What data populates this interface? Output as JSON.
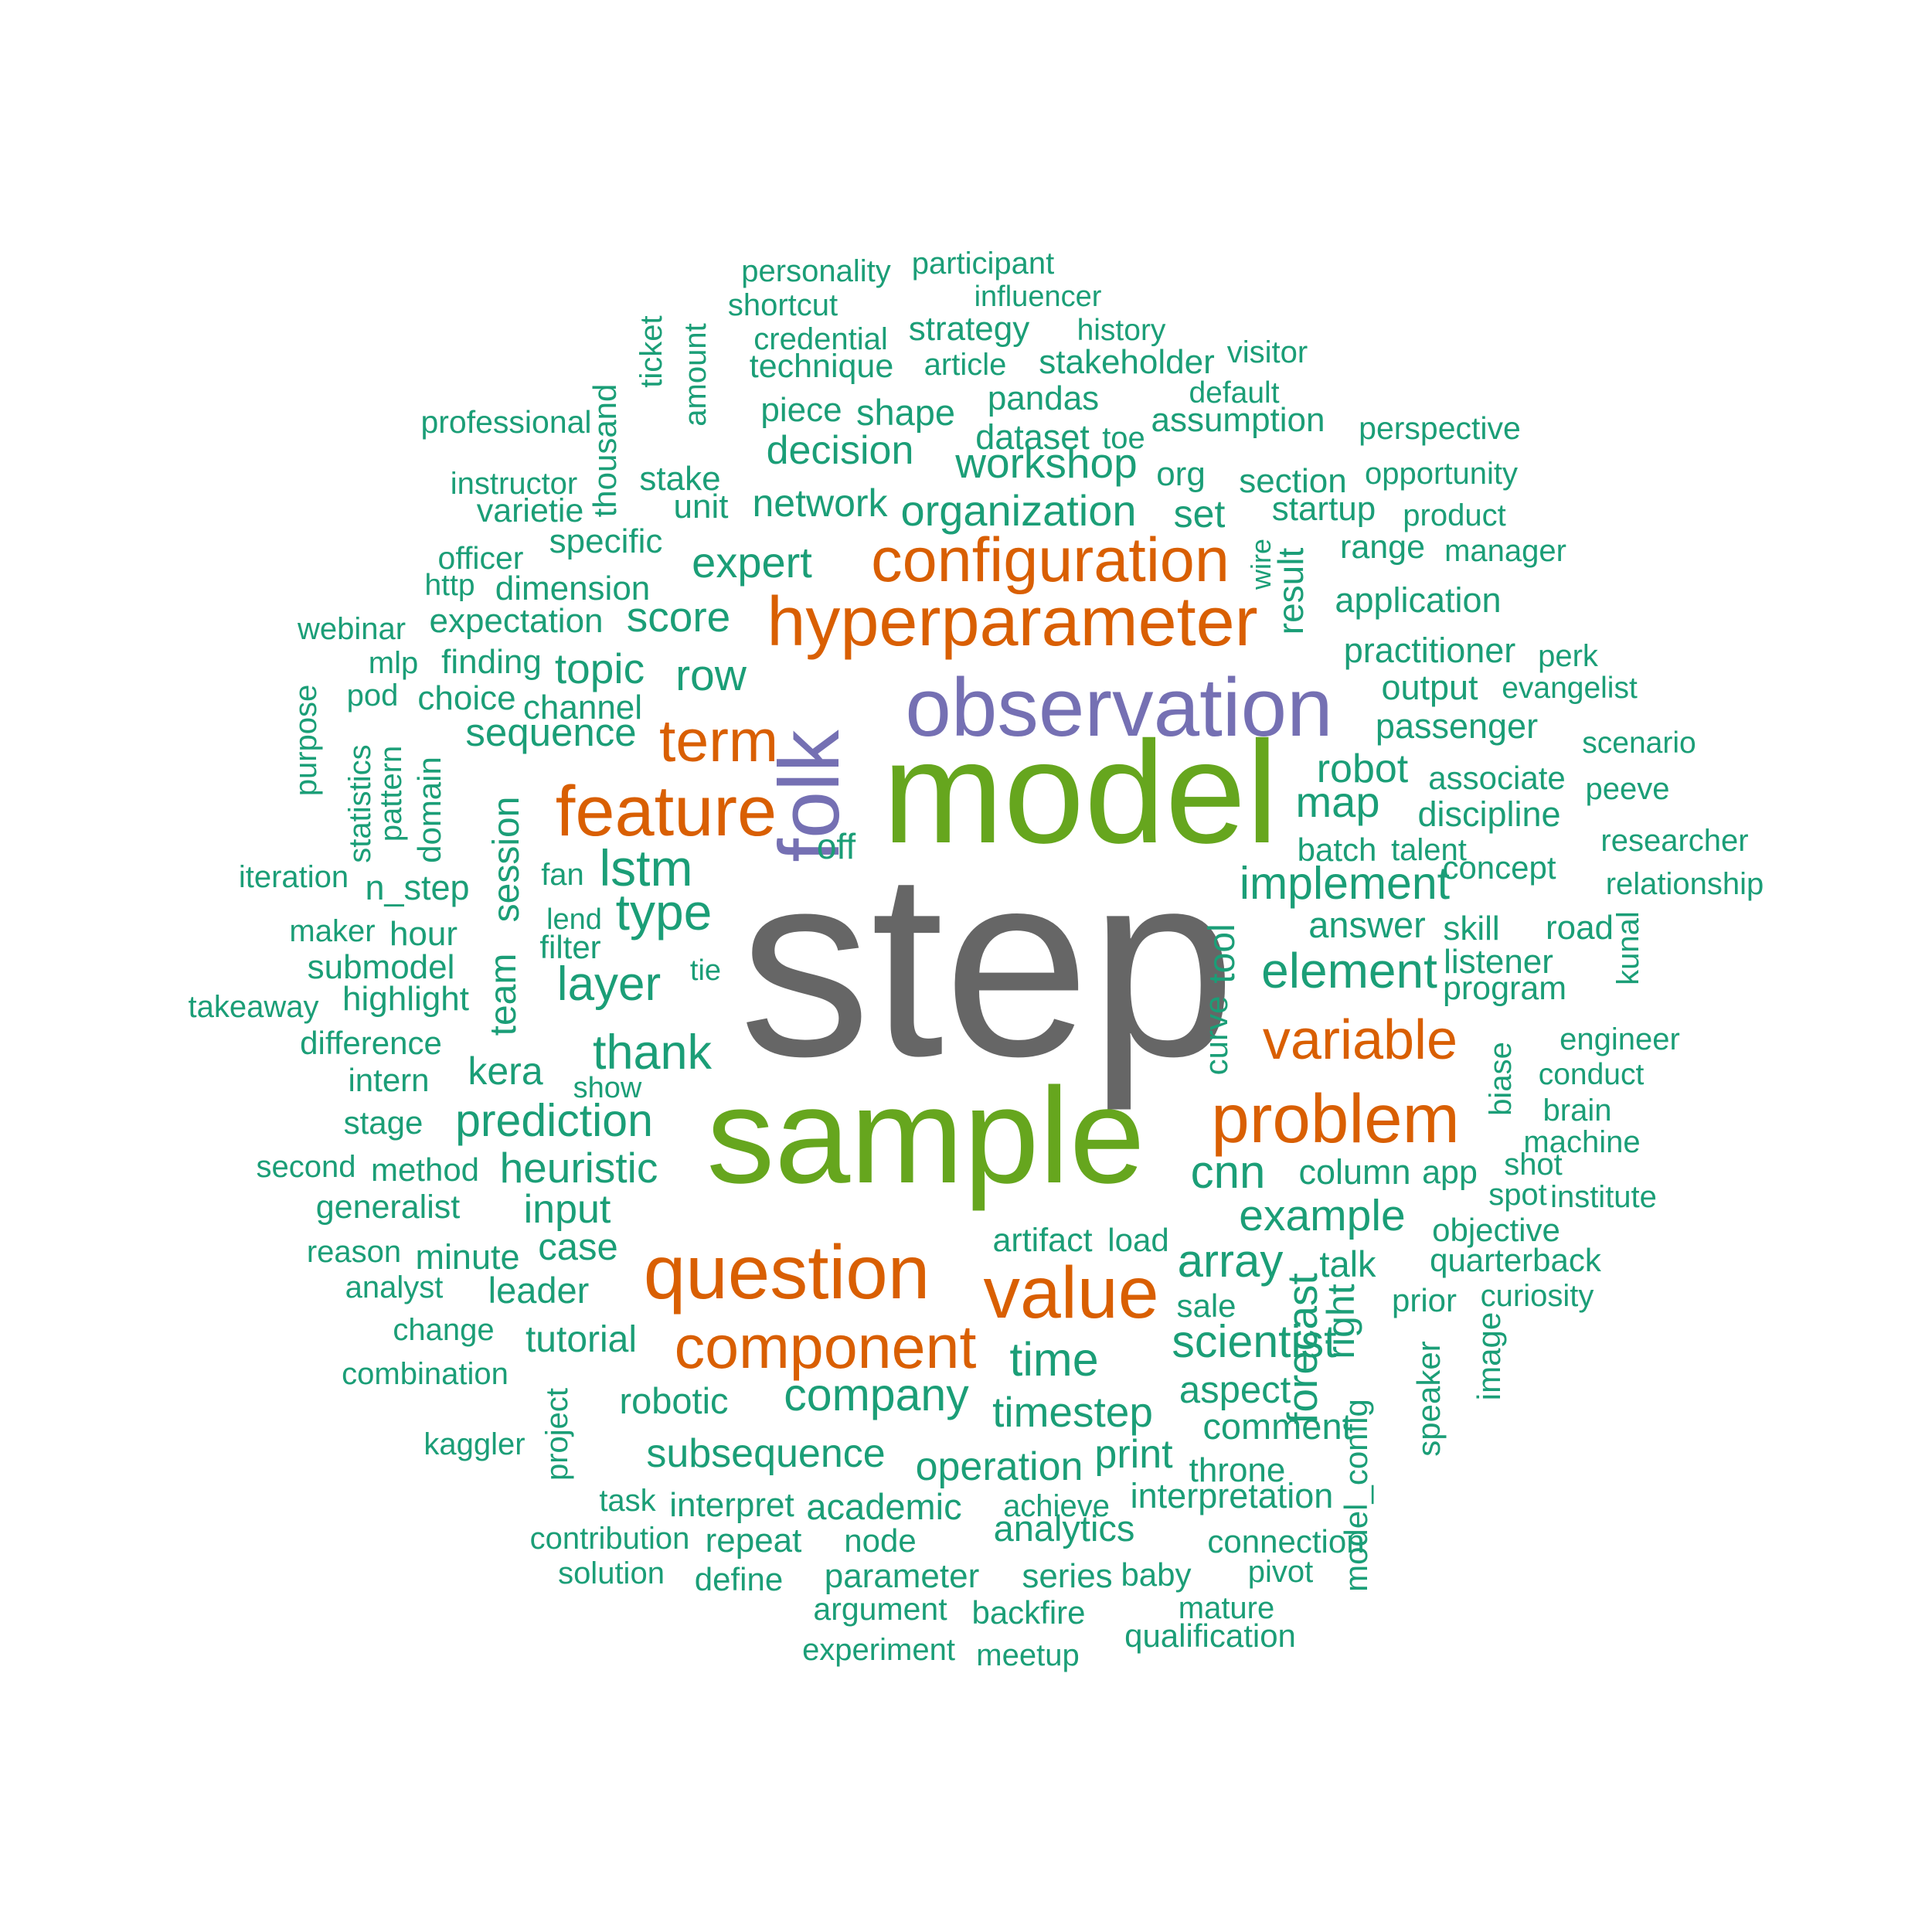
{
  "colors": {
    "gray": "#666666",
    "green": "#66A61E",
    "purple": "#7570B3",
    "orange": "#D95F02",
    "teal": "#1B9E77"
  },
  "words": [
    {
      "text": "step",
      "color": "gray"
    },
    {
      "text": "model",
      "color": "green"
    },
    {
      "text": "sample",
      "color": "green"
    },
    {
      "text": "observation",
      "color": "purple"
    },
    {
      "text": "folk",
      "color": "purple"
    },
    {
      "text": "hyperparameter",
      "color": "orange"
    },
    {
      "text": "configuration",
      "color": "orange"
    },
    {
      "text": "feature",
      "color": "orange"
    },
    {
      "text": "term",
      "color": "orange"
    },
    {
      "text": "problem",
      "color": "orange"
    },
    {
      "text": "question",
      "color": "orange"
    },
    {
      "text": "value",
      "color": "orange"
    },
    {
      "text": "component",
      "color": "orange"
    },
    {
      "text": "variable",
      "color": "orange"
    },
    {
      "text": "personality",
      "color": "teal"
    },
    {
      "text": "participant",
      "color": "teal"
    },
    {
      "text": "shortcut",
      "color": "teal"
    },
    {
      "text": "influencer",
      "color": "teal"
    },
    {
      "text": "credential",
      "color": "teal"
    },
    {
      "text": "strategy",
      "color": "teal"
    },
    {
      "text": "history",
      "color": "teal"
    },
    {
      "text": "technique",
      "color": "teal"
    },
    {
      "text": "article",
      "color": "teal"
    },
    {
      "text": "stakeholder",
      "color": "teal"
    },
    {
      "text": "visitor",
      "color": "teal"
    },
    {
      "text": "default",
      "color": "teal"
    },
    {
      "text": "professional",
      "color": "teal"
    },
    {
      "text": "piece",
      "color": "teal"
    },
    {
      "text": "shape",
      "color": "teal"
    },
    {
      "text": "pandas",
      "color": "teal"
    },
    {
      "text": "assumption",
      "color": "teal"
    },
    {
      "text": "perspective",
      "color": "teal"
    },
    {
      "text": "dataset",
      "color": "teal"
    },
    {
      "text": "toe",
      "color": "teal"
    },
    {
      "text": "decision",
      "color": "teal"
    },
    {
      "text": "workshop",
      "color": "teal"
    },
    {
      "text": "instructor",
      "color": "teal"
    },
    {
      "text": "stake",
      "color": "teal"
    },
    {
      "text": "org",
      "color": "teal"
    },
    {
      "text": "section",
      "color": "teal"
    },
    {
      "text": "opportunity",
      "color": "teal"
    },
    {
      "text": "varietie",
      "color": "teal"
    },
    {
      "text": "unit",
      "color": "teal"
    },
    {
      "text": "network",
      "color": "teal"
    },
    {
      "text": "organization",
      "color": "teal"
    },
    {
      "text": "set",
      "color": "teal"
    },
    {
      "text": "startup",
      "color": "teal"
    },
    {
      "text": "product",
      "color": "teal"
    },
    {
      "text": "specific",
      "color": "teal"
    },
    {
      "text": "range",
      "color": "teal"
    },
    {
      "text": "manager",
      "color": "teal"
    },
    {
      "text": "officer",
      "color": "teal"
    },
    {
      "text": "expert",
      "color": "teal"
    },
    {
      "text": "http",
      "color": "teal"
    },
    {
      "text": "dimension",
      "color": "teal"
    },
    {
      "text": "application",
      "color": "teal"
    },
    {
      "text": "webinar",
      "color": "teal"
    },
    {
      "text": "expectation",
      "color": "teal"
    },
    {
      "text": "score",
      "color": "teal"
    },
    {
      "text": "practitioner",
      "color": "teal"
    },
    {
      "text": "mlp",
      "color": "teal"
    },
    {
      "text": "finding",
      "color": "teal"
    },
    {
      "text": "topic",
      "color": "teal"
    },
    {
      "text": "perk",
      "color": "teal"
    },
    {
      "text": "row",
      "color": "teal"
    },
    {
      "text": "output",
      "color": "teal"
    },
    {
      "text": "evangelist",
      "color": "teal"
    },
    {
      "text": "pod",
      "color": "teal"
    },
    {
      "text": "choice",
      "color": "teal"
    },
    {
      "text": "channel",
      "color": "teal"
    },
    {
      "text": "passenger",
      "color": "teal"
    },
    {
      "text": "sequence",
      "color": "teal"
    },
    {
      "text": "scenario",
      "color": "teal"
    },
    {
      "text": "robot",
      "color": "teal"
    },
    {
      "text": "associate",
      "color": "teal"
    },
    {
      "text": "peeve",
      "color": "teal"
    },
    {
      "text": "map",
      "color": "teal"
    },
    {
      "text": "discipline",
      "color": "teal"
    },
    {
      "text": "off",
      "color": "teal"
    },
    {
      "text": "researcher",
      "color": "teal"
    },
    {
      "text": "batch",
      "color": "teal"
    },
    {
      "text": "talent",
      "color": "teal"
    },
    {
      "text": "iteration",
      "color": "teal"
    },
    {
      "text": "fan",
      "color": "teal"
    },
    {
      "text": "lstm",
      "color": "teal"
    },
    {
      "text": "concept",
      "color": "teal"
    },
    {
      "text": "n_step",
      "color": "teal"
    },
    {
      "text": "implement",
      "color": "teal"
    },
    {
      "text": "relationship",
      "color": "teal"
    },
    {
      "text": "lend",
      "color": "teal"
    },
    {
      "text": "type",
      "color": "teal"
    },
    {
      "text": "maker",
      "color": "teal"
    },
    {
      "text": "hour",
      "color": "teal"
    },
    {
      "text": "answer",
      "color": "teal"
    },
    {
      "text": "skill",
      "color": "teal"
    },
    {
      "text": "road",
      "color": "teal"
    },
    {
      "text": "filter",
      "color": "teal"
    },
    {
      "text": "listener",
      "color": "teal"
    },
    {
      "text": "submodel",
      "color": "teal"
    },
    {
      "text": "tie",
      "color": "teal"
    },
    {
      "text": "element",
      "color": "teal"
    },
    {
      "text": "takeaway",
      "color": "teal"
    },
    {
      "text": "highlight",
      "color": "teal"
    },
    {
      "text": "layer",
      "color": "teal"
    },
    {
      "text": "program",
      "color": "teal"
    },
    {
      "text": "difference",
      "color": "teal"
    },
    {
      "text": "engineer",
      "color": "teal"
    },
    {
      "text": "thank",
      "color": "teal"
    },
    {
      "text": "conduct",
      "color": "teal"
    },
    {
      "text": "intern",
      "color": "teal"
    },
    {
      "text": "kera",
      "color": "teal"
    },
    {
      "text": "show",
      "color": "teal"
    },
    {
      "text": "brain",
      "color": "teal"
    },
    {
      "text": "stage",
      "color": "teal"
    },
    {
      "text": "prediction",
      "color": "teal"
    },
    {
      "text": "machine",
      "color": "teal"
    },
    {
      "text": "second",
      "color": "teal"
    },
    {
      "text": "method",
      "color": "teal"
    },
    {
      "text": "heuristic",
      "color": "teal"
    },
    {
      "text": "cnn",
      "color": "teal"
    },
    {
      "text": "column",
      "color": "teal"
    },
    {
      "text": "app",
      "color": "teal"
    },
    {
      "text": "shot",
      "color": "teal"
    },
    {
      "text": "generalist",
      "color": "teal"
    },
    {
      "text": "input",
      "color": "teal"
    },
    {
      "text": "spot",
      "color": "teal"
    },
    {
      "text": "institute",
      "color": "teal"
    },
    {
      "text": "example",
      "color": "teal"
    },
    {
      "text": "objective",
      "color": "teal"
    },
    {
      "text": "artifact",
      "color": "teal"
    },
    {
      "text": "load",
      "color": "teal"
    },
    {
      "text": "reason",
      "color": "teal"
    },
    {
      "text": "case",
      "color": "teal"
    },
    {
      "text": "minute",
      "color": "teal"
    },
    {
      "text": "array",
      "color": "teal"
    },
    {
      "text": "talk",
      "color": "teal"
    },
    {
      "text": "quarterback",
      "color": "teal"
    },
    {
      "text": "analyst",
      "color": "teal"
    },
    {
      "text": "leader",
      "color": "teal"
    },
    {
      "text": "prior",
      "color": "teal"
    },
    {
      "text": "curiosity",
      "color": "teal"
    },
    {
      "text": "sale",
      "color": "teal"
    },
    {
      "text": "change",
      "color": "teal"
    },
    {
      "text": "tutorial",
      "color": "teal"
    },
    {
      "text": "scientist",
      "color": "teal"
    },
    {
      "text": "time",
      "color": "teal"
    },
    {
      "text": "combination",
      "color": "teal"
    },
    {
      "text": "aspect",
      "color": "teal"
    },
    {
      "text": "robotic",
      "color": "teal"
    },
    {
      "text": "company",
      "color": "teal"
    },
    {
      "text": "timestep",
      "color": "teal"
    },
    {
      "text": "comment",
      "color": "teal"
    },
    {
      "text": "kaggler",
      "color": "teal"
    },
    {
      "text": "subsequence",
      "color": "teal"
    },
    {
      "text": "print",
      "color": "teal"
    },
    {
      "text": "operation",
      "color": "teal"
    },
    {
      "text": "throne",
      "color": "teal"
    },
    {
      "text": "task",
      "color": "teal"
    },
    {
      "text": "interpret",
      "color": "teal"
    },
    {
      "text": "academic",
      "color": "teal"
    },
    {
      "text": "achieve",
      "color": "teal"
    },
    {
      "text": "interpretation",
      "color": "teal"
    },
    {
      "text": "contribution",
      "color": "teal"
    },
    {
      "text": "repeat",
      "color": "teal"
    },
    {
      "text": "node",
      "color": "teal"
    },
    {
      "text": "analytics",
      "color": "teal"
    },
    {
      "text": "connection",
      "color": "teal"
    },
    {
      "text": "solution",
      "color": "teal"
    },
    {
      "text": "define",
      "color": "teal"
    },
    {
      "text": "parameter",
      "color": "teal"
    },
    {
      "text": "series",
      "color": "teal"
    },
    {
      "text": "baby",
      "color": "teal"
    },
    {
      "text": "pivot",
      "color": "teal"
    },
    {
      "text": "argument",
      "color": "teal"
    },
    {
      "text": "backfire",
      "color": "teal"
    },
    {
      "text": "mature",
      "color": "teal"
    },
    {
      "text": "experiment",
      "color": "teal"
    },
    {
      "text": "meetup",
      "color": "teal"
    },
    {
      "text": "qualification",
      "color": "teal"
    },
    {
      "text": "ticket",
      "color": "teal"
    },
    {
      "text": "amount",
      "color": "teal"
    },
    {
      "text": "thousand",
      "color": "teal"
    },
    {
      "text": "wire",
      "color": "teal"
    },
    {
      "text": "result",
      "color": "teal"
    },
    {
      "text": "purpose",
      "color": "teal"
    },
    {
      "text": "statistics",
      "color": "teal"
    },
    {
      "text": "pattern",
      "color": "teal"
    },
    {
      "text": "domain",
      "color": "teal"
    },
    {
      "text": "session",
      "color": "teal"
    },
    {
      "text": "team",
      "color": "teal"
    },
    {
      "text": "tool",
      "color": "teal"
    },
    {
      "text": "curve",
      "color": "teal"
    },
    {
      "text": "kunal",
      "color": "teal"
    },
    {
      "text": "biase",
      "color": "teal"
    },
    {
      "text": "forecast",
      "color": "teal"
    },
    {
      "text": "right",
      "color": "teal"
    },
    {
      "text": "model_config",
      "color": "teal"
    },
    {
      "text": "speaker",
      "color": "teal"
    },
    {
      "text": "image",
      "color": "teal"
    },
    {
      "text": "project",
      "color": "teal"
    }
  ]
}
